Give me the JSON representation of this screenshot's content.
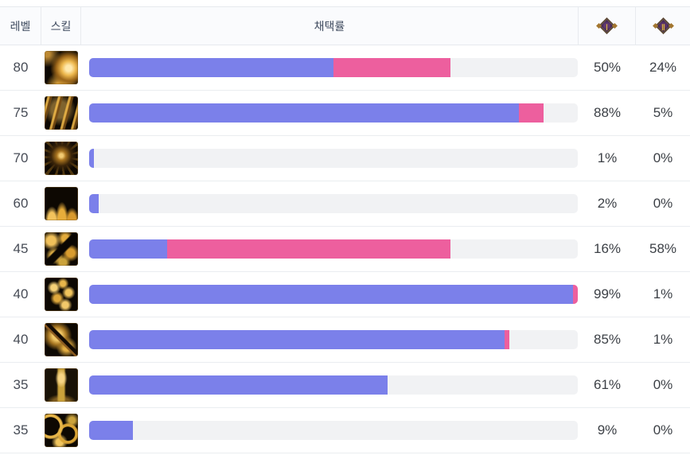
{
  "header": {
    "level": "레벨",
    "skill": "스킬",
    "pick_rate": "채택률",
    "tier1_numeral": "Ⅰ",
    "tier2_numeral": "Ⅱ"
  },
  "colors": {
    "bar_primary": "#7b80ea",
    "bar_secondary": "#ed5f9e",
    "bar_track": "#f1f2f4"
  },
  "rows": [
    {
      "level": "80",
      "icon": "golden-swirl",
      "primary_pct": 50,
      "secondary_pct": 24,
      "primary_label": "50%",
      "secondary_label": "24%"
    },
    {
      "level": "75",
      "icon": "golden-streaks",
      "primary_pct": 88,
      "secondary_pct": 5,
      "primary_label": "88%",
      "secondary_label": "5%"
    },
    {
      "level": "70",
      "icon": "dark-burst",
      "primary_pct": 1,
      "secondary_pct": 0,
      "primary_label": "1%",
      "secondary_label": "0%"
    },
    {
      "level": "60",
      "icon": "flames",
      "primary_pct": 2,
      "secondary_pct": 0,
      "primary_label": "2%",
      "secondary_label": "0%"
    },
    {
      "level": "45",
      "icon": "leopard-slash",
      "primary_pct": 16,
      "secondary_pct": 58,
      "primary_label": "16%",
      "secondary_label": "58%"
    },
    {
      "level": "40",
      "icon": "gold-splash",
      "primary_pct": 99,
      "secondary_pct": 1,
      "primary_label": "99%",
      "secondary_label": "1%"
    },
    {
      "level": "40",
      "icon": "skull-slash",
      "primary_pct": 85,
      "secondary_pct": 1,
      "primary_label": "85%",
      "secondary_label": "1%"
    },
    {
      "level": "35",
      "icon": "totem",
      "primary_pct": 61,
      "secondary_pct": 0,
      "primary_label": "61%",
      "secondary_label": "0%"
    },
    {
      "level": "35",
      "icon": "gold-vines",
      "primary_pct": 9,
      "secondary_pct": 0,
      "primary_label": "9%",
      "secondary_label": "0%"
    }
  ]
}
